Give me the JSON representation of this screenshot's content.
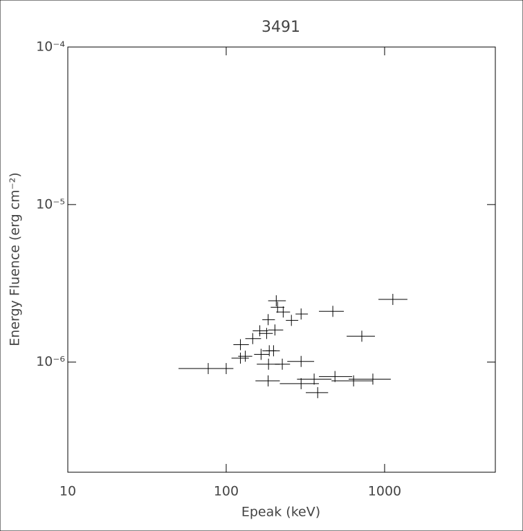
{
  "chart_data": {
    "type": "scatter",
    "title": "3491",
    "x_label": "Epeak (keV)",
    "y_label": "Energy Fluence (erg cm⁻²)",
    "x_log": true,
    "y_log": true,
    "color": "#000000",
    "xlim": [
      10,
      5000
    ],
    "ylim": [
      2e-07,
      0.0001
    ],
    "xticks": [
      10,
      100,
      1000
    ],
    "yticks": [
      {
        "value": 1e-06,
        "label": "10⁻⁶"
      },
      {
        "value": 1e-05,
        "label": "10⁻⁵"
      },
      {
        "value": 0.0001,
        "label": "10⁻⁴"
      }
    ],
    "x": [
      77,
      100,
      123,
      123,
      132,
      147,
      163,
      166,
      180,
      184,
      187,
      207,
      211,
      203,
      229,
      258,
      297,
      199,
      185,
      226,
      297,
      184,
      297,
      359,
      378,
      486,
      637,
      843,
      471,
      718,
      1127
    ],
    "x_low": [
      50,
      91,
      108,
      111,
      119,
      132,
      147,
      150,
      161,
      169,
      169,
      184,
      191,
      184,
      207,
      238,
      274,
      178,
      156,
      203,
      243,
      153,
      218,
      280,
      318,
      385,
      462,
      593,
      385,
      576,
      914
    ],
    "x_high": [
      93,
      111,
      139,
      139,
      146,
      166,
      184,
      187,
      197,
      203,
      207,
      238,
      233,
      229,
      253,
      285,
      328,
      218,
      218,
      253,
      359,
      218,
      385,
      462,
      440,
      624,
      843,
      1094,
      553,
      869,
      1393
    ],
    "values": [
      9.1e-07,
      9.1e-07,
      1.06e-06,
      1.29e-06,
      1.09e-06,
      1.41e-06,
      1.58e-06,
      1.12e-06,
      1.52e-06,
      1.86e-06,
      1.18e-06,
      2.45e-06,
      2.23e-06,
      1.6e-06,
      2.08e-06,
      1.84e-06,
      2.02e-06,
      1.18e-06,
      9.7e-07,
      9.7e-07,
      1.01e-06,
      7.6e-07,
      7.3e-07,
      7.8e-07,
      6.4e-07,
      8.1e-07,
      7.6e-07,
      7.8e-07,
      2.1e-06,
      1.46e-06,
      2.5e-06
    ]
  }
}
